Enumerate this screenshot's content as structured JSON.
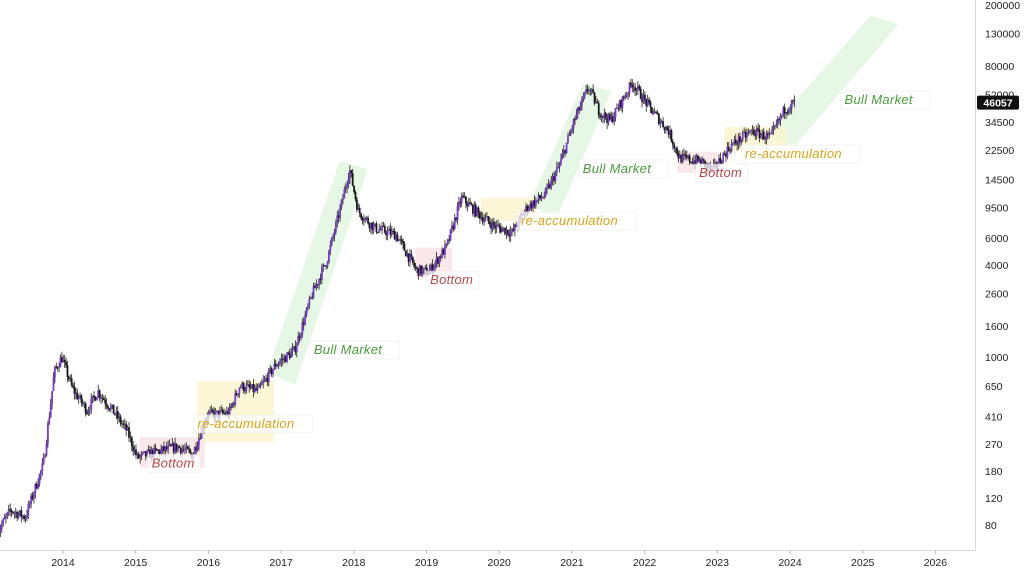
{
  "chart_data": {
    "type": "candlestick",
    "title": "",
    "scale": "log",
    "ylim": [
      55,
      200000
    ],
    "xlim": [
      2013.1,
      2026.8
    ],
    "x_ticks": [
      "2014",
      "2015",
      "2016",
      "2017",
      "2018",
      "2019",
      "2020",
      "2021",
      "2022",
      "2023",
      "2024",
      "2025",
      "2026"
    ],
    "y_ticks": [
      "200000",
      "130000",
      "80000",
      "52000",
      "34500",
      "22500",
      "14500",
      "9500",
      "6000",
      "4000",
      "2600",
      "1600",
      "1000",
      "650",
      "410",
      "270",
      "180",
      "120",
      "80"
    ],
    "last_price": "46057",
    "price_path": [
      [
        2013.1,
        70
      ],
      [
        2013.3,
        100
      ],
      [
        2013.5,
        90
      ],
      [
        2013.75,
        200
      ],
      [
        2013.9,
        800
      ],
      [
        2014.0,
        1000
      ],
      [
        2014.15,
        620
      ],
      [
        2014.35,
        450
      ],
      [
        2014.5,
        600
      ],
      [
        2014.7,
        450
      ],
      [
        2014.9,
        330
      ],
      [
        2015.04,
        220
      ],
      [
        2015.3,
        240
      ],
      [
        2015.6,
        260
      ],
      [
        2015.8,
        230
      ],
      [
        2016.0,
        420
      ],
      [
        2016.3,
        430
      ],
      [
        2016.45,
        650
      ],
      [
        2016.7,
        600
      ],
      [
        2016.95,
        900
      ],
      [
        2017.2,
        1100
      ],
      [
        2017.45,
        2600
      ],
      [
        2017.65,
        4300
      ],
      [
        2017.85,
        10000
      ],
      [
        2017.96,
        17000
      ],
      [
        2018.08,
        9000
      ],
      [
        2018.3,
        7000
      ],
      [
        2018.6,
        6300
      ],
      [
        2018.88,
        3700
      ],
      [
        2019.05,
        3600
      ],
      [
        2019.3,
        5300
      ],
      [
        2019.5,
        11000
      ],
      [
        2019.75,
        8500
      ],
      [
        2019.95,
        7200
      ],
      [
        2020.2,
        6500
      ],
      [
        2020.4,
        9500
      ],
      [
        2020.65,
        11500
      ],
      [
        2020.85,
        18000
      ],
      [
        2021.05,
        35000
      ],
      [
        2021.25,
        58000
      ],
      [
        2021.4,
        40000
      ],
      [
        2021.55,
        35000
      ],
      [
        2021.85,
        62000
      ],
      [
        2022.1,
        42000
      ],
      [
        2022.35,
        30000
      ],
      [
        2022.5,
        20000
      ],
      [
        2022.8,
        19000
      ],
      [
        2022.95,
        16500
      ],
      [
        2023.2,
        24000
      ],
      [
        2023.5,
        30000
      ],
      [
        2023.75,
        27000
      ],
      [
        2023.95,
        42000
      ],
      [
        2024.08,
        46057
      ]
    ],
    "bands": [
      {
        "kind": "bull",
        "from": [
          2017.0,
          850
        ],
        "to": [
          2018.0,
          18000
        ]
      },
      {
        "kind": "bull",
        "from": [
          2020.6,
          10500
        ],
        "to": [
          2021.35,
          58000
        ]
      },
      {
        "kind": "bull",
        "from": [
          2023.85,
          30000
        ],
        "to": [
          2025.3,
          160000
        ]
      },
      {
        "kind": "reacc",
        "from": [
          2015.85,
          280
        ],
        "to": [
          2016.9,
          700
        ]
      },
      {
        "kind": "reacc",
        "from": [
          2019.75,
          7800
        ],
        "to": [
          2020.5,
          11000
        ]
      },
      {
        "kind": "reacc",
        "from": [
          2023.1,
          22000
        ],
        "to": [
          2023.95,
          32000
        ]
      },
      {
        "kind": "bottom",
        "from": [
          2015.05,
          190
        ],
        "to": [
          2015.95,
          300
        ]
      },
      {
        "kind": "bottom",
        "from": [
          2018.85,
          3300
        ],
        "to": [
          2019.35,
          5200
        ]
      },
      {
        "kind": "bottom",
        "from": [
          2022.45,
          16000
        ],
        "to": [
          2023.0,
          22000
        ]
      }
    ],
    "annotations": [
      {
        "text": "Bull Market",
        "kind": "bull",
        "x": 2017.45,
        "y": 1050
      },
      {
        "text": "Bull Market",
        "kind": "bull",
        "x": 2021.15,
        "y": 16000
      },
      {
        "text": "Bull Market",
        "kind": "bull",
        "x": 2024.75,
        "y": 45000
      },
      {
        "text": "re-accumulation",
        "kind": "reacc",
        "x": 2015.85,
        "y": 345
      },
      {
        "text": "re-accumulation",
        "kind": "reacc",
        "x": 2020.3,
        "y": 7300
      },
      {
        "text": "re-accumulation",
        "kind": "reacc",
        "x": 2023.38,
        "y": 20000
      },
      {
        "text": "Bottom",
        "kind": "bottom",
        "x": 2015.22,
        "y": 190
      },
      {
        "text": "Bottom",
        "kind": "bottom",
        "x": 2019.05,
        "y": 3000
      },
      {
        "text": "Bottom",
        "kind": "bottom",
        "x": 2022.75,
        "y": 15000
      }
    ]
  },
  "colors": {
    "candle_up": "#7a3cc9",
    "candle_down": "#1a1a1a",
    "wick": "#222222",
    "bull": "#4a9a3c",
    "bull_band": "#d4f0cf",
    "reacc": "#d6a31a",
    "reacc_band": "#fbf2cc",
    "bottom": "#b5474d",
    "bottom_band": "#f9e3e6",
    "axis_line": "#d8d8d8",
    "price_label_bg": "#111111",
    "price_label_text": "#ffffff"
  }
}
